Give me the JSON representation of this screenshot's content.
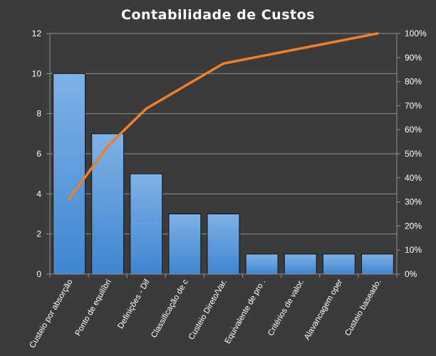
{
  "chart_data": {
    "type": "bar",
    "title": "Contabilidade  de  Custos",
    "categories": [
      "Custeio por absorção",
      "Ponto de equilíbri",
      "Definições - Dif",
      "Classificação de c",
      "Custeio Direto/Var.",
      "Equivalente de pro .",
      "Critérios de valor.",
      "Alavancagem oper",
      "Custeio baseado."
    ],
    "series": [
      {
        "type": "bar",
        "axis": "left",
        "values": [
          10,
          7,
          5,
          3,
          3,
          1,
          1,
          1,
          1
        ]
      },
      {
        "type": "line",
        "axis": "right",
        "values": [
          31.25,
          53.13,
          68.75,
          78.13,
          87.5,
          90.63,
          93.75,
          96.88,
          100
        ]
      }
    ],
    "ylim": [
      0,
      12
    ],
    "yticks": [
      "0",
      "2",
      "4",
      "6",
      "8",
      "10",
      "12"
    ],
    "y2lim": [
      0,
      100
    ],
    "y2ticks": [
      "0%",
      "10%",
      "20%",
      "30%",
      "40%",
      "50%",
      "60%",
      "70%",
      "80%",
      "90%",
      "100%"
    ],
    "grid": true,
    "legend": "none",
    "colors": {
      "background": "#3b3b3b",
      "bar_top": "#7fb1e6",
      "bar_bottom": "#3f86cf",
      "bar_edge": "#141414",
      "line": "#ef7f2a",
      "grid": "#8e8e8e",
      "text": "#ffffff"
    }
  }
}
